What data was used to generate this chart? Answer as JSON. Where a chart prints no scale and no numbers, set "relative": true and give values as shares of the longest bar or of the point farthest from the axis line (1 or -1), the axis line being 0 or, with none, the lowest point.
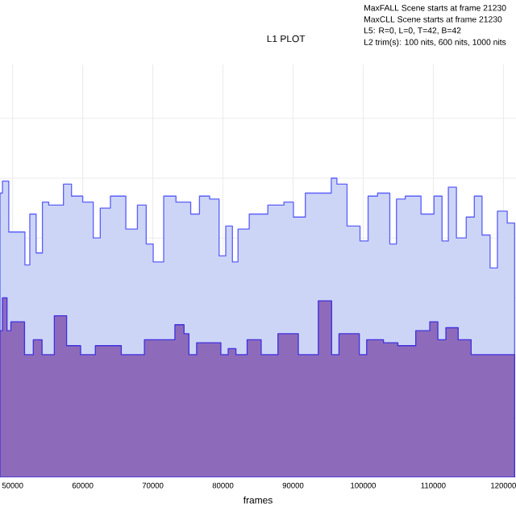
{
  "chart_data": {
    "type": "area",
    "title": "L1 PLOT",
    "xlabel": "frames",
    "relative": true,
    "grid": true,
    "annotations": [
      "MaxFALL Scene starts at frame 21230",
      "MaxCLL Scene starts at frame 21230",
      "L5: R=0, L=0, T=42, B=42",
      "L2 trim(s): 100 nits, 600 nits, 1000 nits"
    ],
    "xlim": [
      48200,
      121800
    ],
    "xticks": [
      50000,
      60000,
      70000,
      80000,
      90000,
      100000,
      110000,
      120000
    ],
    "series": [
      {
        "color": "#cdd5f6",
        "x": [
          48200,
          48900,
          50000,
          51400,
          52100,
          52800,
          53900,
          54600,
          55700,
          56900,
          57600,
          59200,
          60800,
          62200,
          62800,
          65100,
          67200,
          68400,
          69700,
          70400,
          71100,
          72000,
          74600,
          76200,
          77100,
          79100,
          79800,
          81000,
          81700,
          82600,
          84900,
          87900,
          89500,
          90600,
          92900,
          95200,
          95700,
          96800,
          98600,
          100500,
          100900,
          103200,
          104400,
          105100,
          106900,
          109600,
          110600,
          111900,
          112400,
          114200,
          115200,
          116500,
          117400,
          118800,
          119500,
          121600
        ],
        "values": [
          0.95,
          0.99,
          0.82,
          0.82,
          0.71,
          0.88,
          0.75,
          0.92,
          0.91,
          0.91,
          0.98,
          0.94,
          0.92,
          0.8,
          0.9,
          0.94,
          0.83,
          0.91,
          0.78,
          0.72,
          0.72,
          0.94,
          0.92,
          0.88,
          0.94,
          0.93,
          0.74,
          0.84,
          0.72,
          0.83,
          0.88,
          0.91,
          0.92,
          0.87,
          0.95,
          0.95,
          1,
          0.98,
          0.84,
          0.79,
          0.94,
          0.95,
          0.78,
          0.93,
          0.94,
          0.88,
          0.94,
          0.79,
          0.97,
          0.8,
          0.87,
          0.94,
          0.81,
          0.7,
          0.89,
          0.85
        ]
      },
      {
        "color": "#8e6bba",
        "x": [
          48200,
          48900,
          49500,
          50000,
          51600,
          51800,
          54100,
          54300,
          57600,
          57800,
          59600,
          59800,
          63800,
          65400,
          65600,
          72000,
          74300,
          74600,
          75700,
          76800,
          79600,
          79800,
          81700,
          82000,
          84900,
          86000,
          89700,
          91800,
          95400,
          95600,
          97500,
          99300,
          99600,
          101400,
          104400,
          105500,
          107400,
          107600,
          108900,
          110100,
          111200,
          112400,
          114700,
          116100,
          121600
        ],
        "values": [
          0.49,
          0.6,
          0.49,
          0.52,
          0.52,
          0.41,
          0.46,
          0.41,
          0.54,
          0.44,
          0.44,
          0.41,
          0.44,
          0.44,
          0.41,
          0.46,
          0.51,
          0.48,
          0.41,
          0.45,
          0.45,
          0.41,
          0.43,
          0.41,
          0.46,
          0.41,
          0.48,
          0.41,
          0.59,
          0.41,
          0.48,
          0.48,
          0.41,
          0.46,
          0.45,
          0.44,
          0.44,
          0.49,
          0.49,
          0.52,
          0.46,
          0.5,
          0.46,
          0.41,
          0.41
        ]
      }
    ]
  }
}
